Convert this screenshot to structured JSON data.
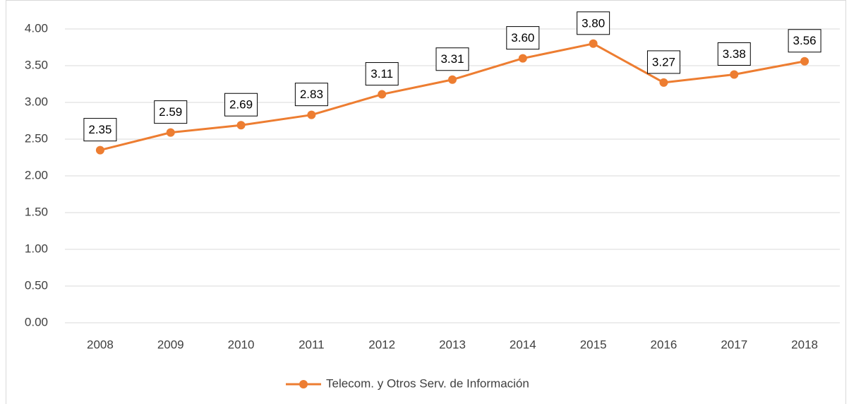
{
  "chart_data": {
    "type": "line",
    "categories": [
      "2008",
      "2009",
      "2010",
      "2011",
      "2012",
      "2013",
      "2014",
      "2015",
      "2016",
      "2017",
      "2018"
    ],
    "series": [
      {
        "name": "Telecom. y Otros Serv. de Información",
        "color": "#ed7d31",
        "values": [
          2.35,
          2.59,
          2.69,
          2.83,
          3.11,
          3.31,
          3.6,
          3.8,
          3.27,
          3.38,
          3.56
        ],
        "value_labels": [
          "2.35",
          "2.59",
          "2.69",
          "2.83",
          "3.11",
          "3.31",
          "3.60",
          "3.80",
          "3.27",
          "3.38",
          "3.56"
        ]
      }
    ],
    "ylim": [
      0,
      4
    ],
    "yticks": [
      {
        "value": 0,
        "label": "0.00"
      },
      {
        "value": 0.5,
        "label": "0.50"
      },
      {
        "value": 1,
        "label": "1.00"
      },
      {
        "value": 1.5,
        "label": "1.50"
      },
      {
        "value": 2,
        "label": "2.00"
      },
      {
        "value": 2.5,
        "label": "2.50"
      },
      {
        "value": 3,
        "label": "3.00"
      },
      {
        "value": 3.5,
        "label": "3.50"
      },
      {
        "value": 4,
        "label": "4.00"
      }
    ],
    "grid": true,
    "legend": "bottom"
  }
}
